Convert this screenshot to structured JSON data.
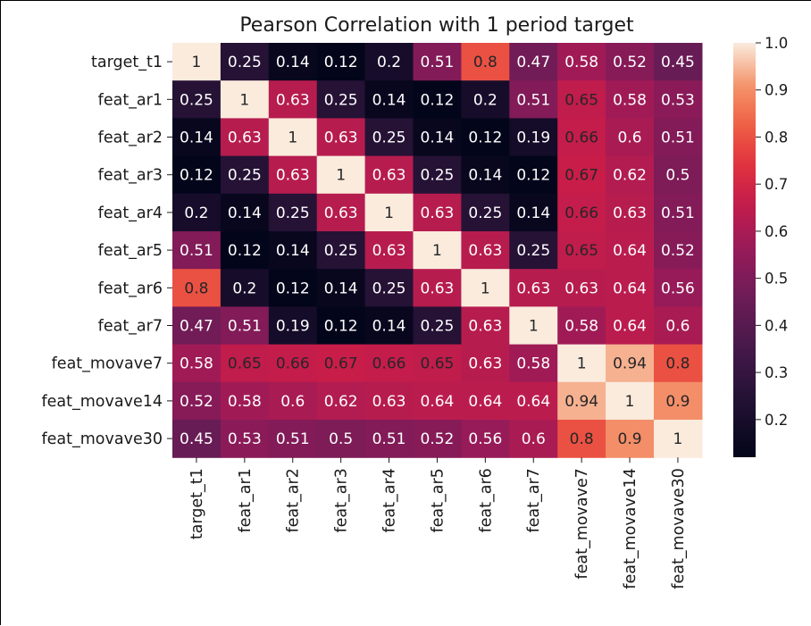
{
  "chart_data": {
    "type": "heatmap",
    "title": "Pearson Correlation with 1 period target",
    "rows": [
      "target_t1",
      "feat_ar1",
      "feat_ar2",
      "feat_ar3",
      "feat_ar4",
      "feat_ar5",
      "feat_ar6",
      "feat_ar7",
      "feat_movave7",
      "feat_movave14",
      "feat_movave30"
    ],
    "columns": [
      "target_t1",
      "feat_ar1",
      "feat_ar2",
      "feat_ar3",
      "feat_ar4",
      "feat_ar5",
      "feat_ar6",
      "feat_ar7",
      "feat_movave7",
      "feat_movave14",
      "feat_movave30"
    ],
    "values": [
      [
        1,
        0.25,
        0.14,
        0.12,
        0.2,
        0.51,
        0.8,
        0.47,
        0.58,
        0.52,
        0.45
      ],
      [
        0.25,
        1,
        0.63,
        0.25,
        0.14,
        0.12,
        0.2,
        0.51,
        0.65,
        0.58,
        0.53
      ],
      [
        0.14,
        0.63,
        1,
        0.63,
        0.25,
        0.14,
        0.12,
        0.19,
        0.66,
        0.6,
        0.51
      ],
      [
        0.12,
        0.25,
        0.63,
        1,
        0.63,
        0.25,
        0.14,
        0.12,
        0.67,
        0.62,
        0.5
      ],
      [
        0.2,
        0.14,
        0.25,
        0.63,
        1,
        0.63,
        0.25,
        0.14,
        0.66,
        0.63,
        0.51
      ],
      [
        0.51,
        0.12,
        0.14,
        0.25,
        0.63,
        1,
        0.63,
        0.25,
        0.65,
        0.64,
        0.52
      ],
      [
        0.8,
        0.2,
        0.12,
        0.14,
        0.25,
        0.63,
        1,
        0.63,
        0.63,
        0.64,
        0.56
      ],
      [
        0.47,
        0.51,
        0.19,
        0.12,
        0.14,
        0.25,
        0.63,
        1,
        0.58,
        0.64,
        0.6
      ],
      [
        0.58,
        0.65,
        0.66,
        0.67,
        0.66,
        0.65,
        0.63,
        0.58,
        1,
        0.94,
        0.8
      ],
      [
        0.52,
        0.58,
        0.6,
        0.62,
        0.63,
        0.64,
        0.64,
        0.64,
        0.94,
        1,
        0.9
      ],
      [
        0.45,
        0.53,
        0.51,
        0.5,
        0.51,
        0.52,
        0.56,
        0.6,
        0.8,
        0.9,
        1
      ]
    ],
    "colorbar": {
      "range": [
        0.12,
        1.0
      ],
      "ticks": [
        0.2,
        0.3,
        0.4,
        0.5,
        0.6,
        0.7,
        0.8,
        0.9,
        1.0
      ],
      "tick_labels": [
        "0.2",
        "0.3",
        "0.4",
        "0.5",
        "0.6",
        "0.7",
        "0.8",
        "0.9",
        "1.0"
      ],
      "colormap": "rocket"
    },
    "annotations": "cell values",
    "grid": false
  }
}
